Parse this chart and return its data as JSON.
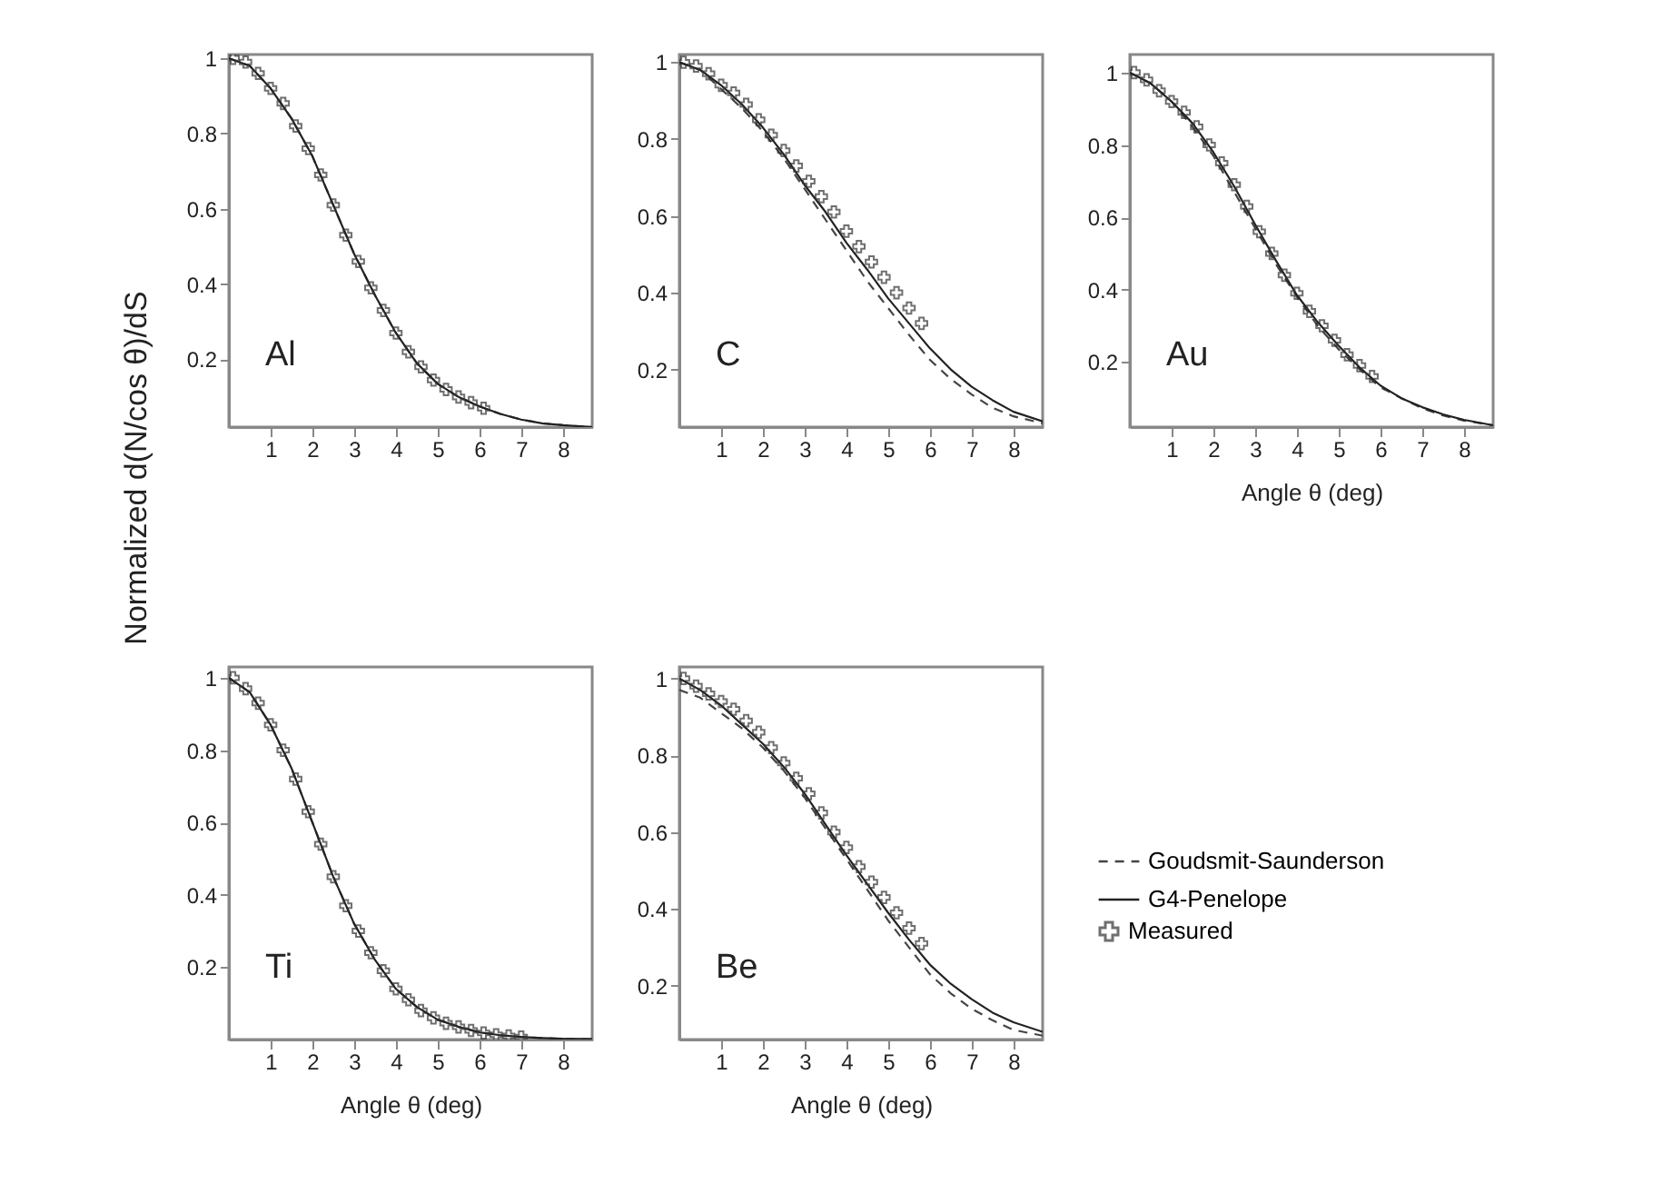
{
  "chart_data": [
    {
      "type": "line",
      "annotations": [
        "Al"
      ],
      "ylabel": "Normalized d(N/cos θ)/dS",
      "xlim": [
        0,
        8.7
      ],
      "ylim": [
        0.02,
        1.01
      ],
      "xticks": [
        1,
        2,
        3,
        4,
        5,
        6,
        7,
        8
      ],
      "yticks": [
        0.2,
        0.4,
        0.6,
        0.8,
        1
      ],
      "legend": false,
      "series": [
        {
          "color": "#444444",
          "line_style": "dashed",
          "x": [
            0,
            0.5,
            1,
            1.5,
            2,
            2.5,
            3,
            3.5,
            4,
            4.5,
            5,
            5.5,
            6,
            6.5,
            7,
            7.5,
            8,
            8.7
          ],
          "values": [
            1,
            0.98,
            0.92,
            0.84,
            0.74,
            0.61,
            0.48,
            0.37,
            0.27,
            0.19,
            0.135,
            0.1,
            0.075,
            0.055,
            0.04,
            0.03,
            0.025,
            0.02
          ]
        },
        {
          "color": "#222222",
          "line_style": "solid",
          "x": [
            0,
            0.5,
            1,
            1.5,
            2,
            2.5,
            3,
            3.5,
            4,
            4.5,
            5,
            5.5,
            6,
            6.5,
            7,
            7.5,
            8,
            8.7
          ],
          "values": [
            1,
            0.98,
            0.92,
            0.84,
            0.74,
            0.61,
            0.48,
            0.37,
            0.27,
            0.19,
            0.135,
            0.1,
            0.075,
            0.055,
            0.04,
            0.03,
            0.025,
            0.02
          ]
        },
        {
          "type": "scatter",
          "marker": "cross",
          "color": "#333333",
          "x": [
            0.1,
            0.4,
            0.7,
            1.0,
            1.3,
            1.6,
            1.9,
            2.2,
            2.5,
            2.8,
            3.1,
            3.4,
            3.7,
            4.0,
            4.3,
            4.6,
            4.9,
            5.2,
            5.5,
            5.8,
            6.1
          ],
          "values": [
            1.0,
            0.99,
            0.96,
            0.92,
            0.88,
            0.82,
            0.76,
            0.69,
            0.61,
            0.53,
            0.46,
            0.39,
            0.33,
            0.27,
            0.22,
            0.18,
            0.145,
            0.12,
            0.1,
            0.085,
            0.07
          ]
        }
      ]
    },
    {
      "type": "line",
      "annotations": [
        "C"
      ],
      "xlim": [
        0,
        8.7
      ],
      "ylim": [
        0.05,
        1.02
      ],
      "xticks": [
        1,
        2,
        3,
        4,
        5,
        6,
        7,
        8
      ],
      "yticks": [
        0.2,
        0.4,
        0.6,
        0.8,
        1
      ],
      "legend": false,
      "series": [
        {
          "color": "#444444",
          "line_style": "dashed",
          "x": [
            0,
            0.5,
            1,
            1.5,
            2,
            2.5,
            3,
            3.5,
            4,
            4.5,
            5,
            5.5,
            6,
            6.5,
            7,
            7.5,
            8,
            8.7
          ],
          "values": [
            1,
            0.98,
            0.93,
            0.88,
            0.82,
            0.75,
            0.67,
            0.59,
            0.51,
            0.43,
            0.36,
            0.29,
            0.225,
            0.175,
            0.135,
            0.1,
            0.078,
            0.06
          ]
        },
        {
          "color": "#222222",
          "line_style": "solid",
          "x": [
            0,
            0.5,
            1,
            1.5,
            2,
            2.5,
            3,
            3.5,
            4,
            4.5,
            5,
            5.5,
            6,
            6.5,
            7,
            7.5,
            8,
            8.7
          ],
          "values": [
            1,
            0.98,
            0.94,
            0.89,
            0.83,
            0.76,
            0.68,
            0.61,
            0.53,
            0.46,
            0.385,
            0.32,
            0.255,
            0.2,
            0.155,
            0.12,
            0.09,
            0.065
          ]
        },
        {
          "type": "scatter",
          "marker": "cross",
          "color": "#333333",
          "x": [
            0.1,
            0.4,
            0.7,
            1.0,
            1.3,
            1.6,
            1.9,
            2.2,
            2.5,
            2.8,
            3.1,
            3.4,
            3.7,
            4.0,
            4.3,
            4.6,
            4.9,
            5.2,
            5.5,
            5.8
          ],
          "values": [
            1.0,
            0.99,
            0.97,
            0.94,
            0.92,
            0.89,
            0.85,
            0.81,
            0.77,
            0.73,
            0.69,
            0.65,
            0.61,
            0.56,
            0.52,
            0.48,
            0.44,
            0.4,
            0.36,
            0.32
          ]
        }
      ]
    },
    {
      "type": "line",
      "annotations": [
        "Au"
      ],
      "xlabel": "Angle θ (deg)",
      "xlim": [
        0,
        8.7
      ],
      "ylim": [
        0.02,
        1.05
      ],
      "xticks": [
        1,
        2,
        3,
        4,
        5,
        6,
        7,
        8
      ],
      "yticks": [
        0.2,
        0.4,
        0.6,
        0.8,
        1
      ],
      "legend": false,
      "series": [
        {
          "color": "#444444",
          "line_style": "dashed",
          "x": [
            0,
            0.5,
            1,
            1.5,
            2,
            2.5,
            3,
            3.5,
            4,
            4.5,
            5,
            5.5,
            6,
            6.5,
            7,
            7.5,
            8,
            8.7
          ],
          "values": [
            1,
            0.97,
            0.92,
            0.85,
            0.77,
            0.67,
            0.57,
            0.47,
            0.38,
            0.3,
            0.235,
            0.18,
            0.13,
            0.1,
            0.072,
            0.052,
            0.038,
            0.025
          ]
        },
        {
          "color": "#222222",
          "line_style": "solid",
          "x": [
            0,
            0.5,
            1,
            1.5,
            2,
            2.5,
            3,
            3.5,
            4,
            4.5,
            5,
            5.5,
            6,
            6.5,
            7,
            7.5,
            8,
            8.7
          ],
          "values": [
            1,
            0.97,
            0.92,
            0.86,
            0.78,
            0.685,
            0.58,
            0.48,
            0.385,
            0.31,
            0.245,
            0.185,
            0.135,
            0.1,
            0.075,
            0.055,
            0.04,
            0.025
          ]
        },
        {
          "type": "scatter",
          "marker": "cross",
          "color": "#333333",
          "x": [
            0.1,
            0.4,
            0.7,
            1.0,
            1.3,
            1.6,
            1.9,
            2.2,
            2.5,
            2.8,
            3.1,
            3.4,
            3.7,
            4.0,
            4.3,
            4.6,
            4.9,
            5.2,
            5.5,
            5.8
          ],
          "values": [
            1.0,
            0.98,
            0.95,
            0.92,
            0.89,
            0.85,
            0.8,
            0.75,
            0.69,
            0.63,
            0.56,
            0.5,
            0.44,
            0.39,
            0.34,
            0.3,
            0.26,
            0.22,
            0.19,
            0.16
          ]
        }
      ]
    },
    {
      "type": "line",
      "annotations": [
        "Ti"
      ],
      "xlabel": "Angle θ (deg)",
      "xlim": [
        0,
        8.7
      ],
      "ylim": [
        0,
        1.03
      ],
      "xticks": [
        1,
        2,
        3,
        4,
        5,
        6,
        7,
        8
      ],
      "yticks": [
        0.2,
        0.4,
        0.6,
        0.8,
        1
      ],
      "legend": false,
      "series": [
        {
          "color": "#444444",
          "line_style": "dashed",
          "x": [
            0,
            0.5,
            1,
            1.5,
            2,
            2.5,
            3,
            3.5,
            4,
            4.5,
            5,
            5.5,
            6,
            6.5,
            7,
            7.5,
            8,
            8.7
          ],
          "values": [
            1,
            0.96,
            0.87,
            0.75,
            0.6,
            0.45,
            0.32,
            0.22,
            0.14,
            0.09,
            0.055,
            0.035,
            0.02,
            0.012,
            0.007,
            0.004,
            0.002,
            0.001
          ]
        },
        {
          "color": "#222222",
          "line_style": "solid",
          "x": [
            0,
            0.5,
            1,
            1.5,
            2,
            2.5,
            3,
            3.5,
            4,
            4.5,
            5,
            5.5,
            6,
            6.5,
            7,
            7.5,
            8,
            8.7
          ],
          "values": [
            1,
            0.96,
            0.87,
            0.75,
            0.6,
            0.45,
            0.32,
            0.22,
            0.14,
            0.09,
            0.055,
            0.035,
            0.02,
            0.012,
            0.007,
            0.004,
            0.002,
            0.001
          ]
        },
        {
          "type": "scatter",
          "marker": "cross",
          "color": "#333333",
          "x": [
            0.1,
            0.4,
            0.7,
            1.0,
            1.3,
            1.6,
            1.9,
            2.2,
            2.5,
            2.8,
            3.1,
            3.4,
            3.7,
            4.0,
            4.3,
            4.6,
            4.9,
            5.2,
            5.5,
            5.8,
            6.1,
            6.4,
            6.7,
            7.0
          ],
          "values": [
            1.0,
            0.97,
            0.93,
            0.87,
            0.8,
            0.72,
            0.63,
            0.54,
            0.45,
            0.37,
            0.3,
            0.24,
            0.19,
            0.14,
            0.11,
            0.08,
            0.06,
            0.045,
            0.035,
            0.025,
            0.018,
            0.013,
            0.01,
            0.007
          ]
        }
      ]
    },
    {
      "type": "line",
      "annotations": [
        "Be"
      ],
      "xlabel": "Angle θ (deg)",
      "xlim": [
        0,
        8.7
      ],
      "ylim": [
        0.06,
        1.03
      ],
      "xticks": [
        1,
        2,
        3,
        4,
        5,
        6,
        7,
        8
      ],
      "yticks": [
        0.2,
        0.4,
        0.6,
        0.8,
        1
      ],
      "legend": "right",
      "series": [
        {
          "name": "Goudsmit-Saunderson",
          "color": "#444444",
          "line_style": "dashed",
          "x": [
            0,
            0.5,
            1,
            1.5,
            2,
            2.5,
            3,
            3.5,
            4,
            4.5,
            5,
            5.5,
            6,
            6.5,
            7,
            7.5,
            8,
            8.7
          ],
          "values": [
            0.97,
            0.95,
            0.91,
            0.87,
            0.82,
            0.76,
            0.69,
            0.61,
            0.53,
            0.45,
            0.37,
            0.3,
            0.23,
            0.18,
            0.14,
            0.11,
            0.085,
            0.07
          ]
        },
        {
          "name": "G4-Penelope",
          "color": "#222222",
          "line_style": "solid",
          "x": [
            0,
            0.5,
            1,
            1.5,
            2,
            2.5,
            3,
            3.5,
            4,
            4.5,
            5,
            5.5,
            6,
            6.5,
            7,
            7.5,
            8,
            8.7
          ],
          "values": [
            1,
            0.97,
            0.93,
            0.88,
            0.83,
            0.77,
            0.7,
            0.62,
            0.54,
            0.465,
            0.39,
            0.32,
            0.255,
            0.205,
            0.165,
            0.13,
            0.105,
            0.08
          ]
        },
        {
          "name": "Measured",
          "type": "scatter",
          "marker": "cross",
          "color": "#333333",
          "x": [
            0.1,
            0.4,
            0.7,
            1.0,
            1.3,
            1.6,
            1.9,
            2.2,
            2.5,
            2.8,
            3.1,
            3.4,
            3.7,
            4.0,
            4.3,
            4.6,
            4.9,
            5.2,
            5.5,
            5.8
          ],
          "values": [
            1.0,
            0.98,
            0.96,
            0.94,
            0.92,
            0.89,
            0.86,
            0.82,
            0.78,
            0.74,
            0.7,
            0.65,
            0.6,
            0.56,
            0.51,
            0.47,
            0.43,
            0.39,
            0.35,
            0.31
          ]
        }
      ]
    }
  ]
}
